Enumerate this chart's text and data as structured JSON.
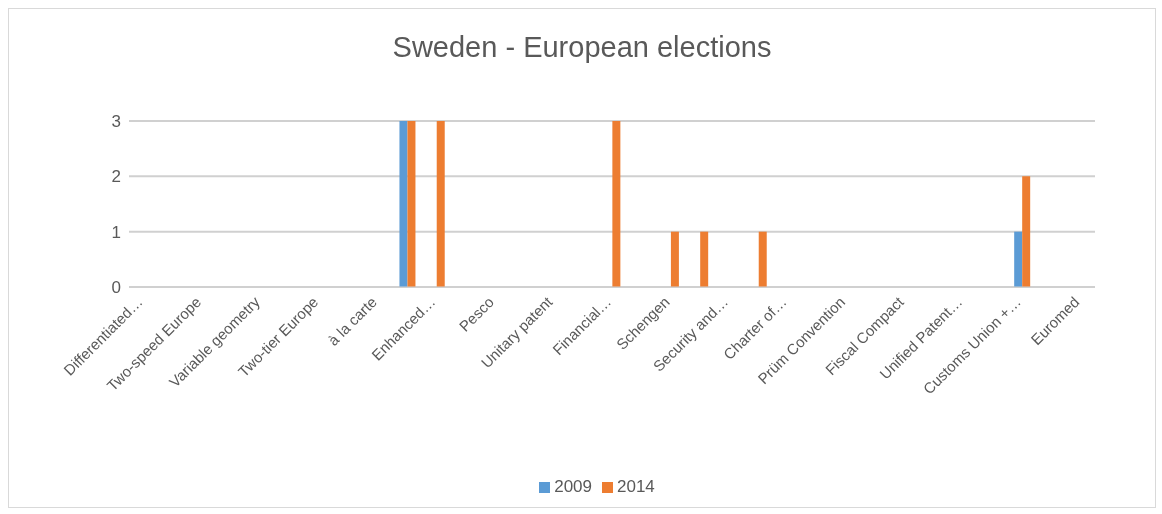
{
  "chart_data": {
    "type": "bar",
    "title": "Sweden - European elections",
    "categories": [
      "Differentiated…",
      null,
      "Two-speed Europe",
      null,
      "Variable geometry",
      null,
      "Two-tier Europe",
      null,
      "à la carte",
      null,
      "Enhanced…",
      null,
      "Pesco",
      null,
      "Unitary patent",
      null,
      "Financial…",
      null,
      "Schengen",
      null,
      "Security and…",
      null,
      "Charter of…",
      null,
      "Prüm Convention",
      null,
      "Fiscal Compact",
      null,
      "Unified Patent…",
      null,
      "Customs Union +…",
      null,
      "Euromed"
    ],
    "series": [
      {
        "name": "2009",
        "color": "#5b9bd5",
        "values": [
          0,
          0,
          0,
          0,
          0,
          0,
          0,
          0,
          0,
          3,
          0,
          0,
          0,
          0,
          0,
          0,
          0,
          0,
          0,
          0,
          0,
          0,
          0,
          0,
          0,
          0,
          0,
          0,
          0,
          0,
          1,
          0,
          0
        ]
      },
      {
        "name": "2014",
        "color": "#ed7d31",
        "values": [
          0,
          0,
          0,
          0,
          0,
          0,
          0,
          0,
          0,
          3,
          3,
          0,
          0,
          0,
          0,
          0,
          3,
          0,
          1,
          1,
          0,
          1,
          0,
          0,
          0,
          0,
          0,
          0,
          0,
          0,
          2,
          0,
          0
        ]
      }
    ],
    "ylim": [
      0,
      3
    ],
    "yticks": [
      0,
      1,
      2,
      3
    ],
    "grid": "y",
    "legend": "bottom"
  }
}
